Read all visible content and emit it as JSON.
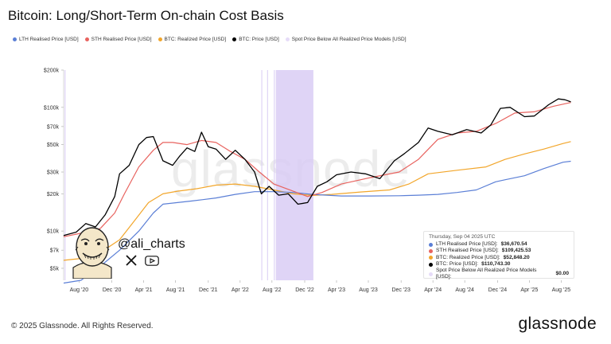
{
  "title": "Bitcoin: Long/Short-Term On-chain Cost Basis",
  "legend": [
    {
      "label": "LTH Realised Price [USD]",
      "color": "#5b7fd6"
    },
    {
      "label": "STH Realised Price [USD]",
      "color": "#e8635f"
    },
    {
      "label": "BTC: Realized Price [USD]",
      "color": "#f2a62b"
    },
    {
      "label": "BTC: Price [USD]",
      "color": "#000000"
    },
    {
      "label": "Spot Price Below All Realized Price Models [USD]",
      "color": "#d9ccf5"
    }
  ],
  "watermark": "glassnode",
  "tooltip": {
    "date": "Thursday, Sep 04 2025 UTC",
    "rows": [
      {
        "label": "LTH Realised Price [USD]:",
        "value": "$36,670.54",
        "color": "#5b7fd6"
      },
      {
        "label": "STH Realised Price [USD]:",
        "value": "$109,425.53",
        "color": "#e8635f"
      },
      {
        "label": "BTC: Realized Price [USD]:",
        "value": "$52,848.20",
        "color": "#f2a62b"
      },
      {
        "label": "BTC: Price [USD]:",
        "value": "$110,743.30",
        "color": "#000000"
      },
      {
        "label": "Spot Price Below All Realized Price Models [USD]:",
        "value": "$0.00",
        "color": "#d9ccf5"
      }
    ]
  },
  "author": {
    "handle": "@ali_charts"
  },
  "footer": {
    "copyright": "© 2025 Glassnode. All Rights Reserved.",
    "brand": "glassnode"
  },
  "chart_data": {
    "type": "line",
    "title": "Bitcoin: Long/Short-Term On-chain Cost Basis",
    "yscale": "log",
    "ylim": [
      4000,
      200000
    ],
    "xlim": [
      2020.42,
      2025.75
    ],
    "y_ticks": [
      5000,
      7000,
      10000,
      20000,
      30000,
      50000,
      70000,
      100000,
      200000
    ],
    "y_tick_labels": [
      "$5k",
      "$7k",
      "$10k",
      "$20k",
      "$30k",
      "$50k",
      "$70k",
      "$100k",
      "$200k"
    ],
    "x_ticks": [
      2020.58,
      2020.92,
      2021.25,
      2021.58,
      2021.92,
      2022.25,
      2022.58,
      2022.92,
      2023.25,
      2023.58,
      2023.92,
      2024.25,
      2024.58,
      2024.92,
      2025.25,
      2025.58
    ],
    "x_tick_labels": [
      "Aug '20",
      "Dec '20",
      "Apr '21",
      "Aug '21",
      "Dec '21",
      "Apr '22",
      "Aug '22",
      "Dec '22",
      "Apr '23",
      "Aug '23",
      "Dec '23",
      "Apr '24",
      "Aug '24",
      "Dec '24",
      "Apr '25",
      "Aug '25"
    ],
    "shaded_regions": [
      [
        2020.43,
        2020.44
      ],
      [
        2022.47,
        2022.48
      ],
      [
        2022.53,
        2022.54
      ],
      [
        2022.6,
        2022.61
      ],
      [
        2022.62,
        2023.01
      ]
    ],
    "series": [
      {
        "name": "LTH Realised Price [USD]",
        "color": "#5b7fd6",
        "x": [
          2020.42,
          2020.6,
          2020.8,
          2021.0,
          2021.2,
          2021.35,
          2021.45,
          2021.6,
          2021.75,
          2022.0,
          2022.2,
          2022.4,
          2022.6,
          2022.8,
          2023.0,
          2023.3,
          2023.6,
          2023.9,
          2024.1,
          2024.3,
          2024.5,
          2024.7,
          2024.9,
          2025.0,
          2025.2,
          2025.4,
          2025.6,
          2025.68
        ],
        "y": [
          3800,
          4000,
          5200,
          7000,
          10000,
          14000,
          16500,
          17000,
          17500,
          18500,
          19800,
          20800,
          20800,
          20500,
          19800,
          19200,
          19200,
          19300,
          19500,
          19800,
          20500,
          21500,
          25000,
          26000,
          28000,
          32000,
          36000,
          36670
        ]
      },
      {
        "name": "STH Realised Price [USD]",
        "color": "#e8635f",
        "x": [
          2020.42,
          2020.6,
          2020.8,
          2020.95,
          2021.05,
          2021.2,
          2021.35,
          2021.45,
          2021.55,
          2021.7,
          2021.85,
          2022.0,
          2022.15,
          2022.3,
          2022.45,
          2022.6,
          2022.8,
          2022.95,
          2023.1,
          2023.3,
          2023.6,
          2023.9,
          2024.1,
          2024.3,
          2024.5,
          2024.7,
          2024.9,
          2025.1,
          2025.3,
          2025.5,
          2025.68
        ],
        "y": [
          9000,
          9600,
          10500,
          14000,
          20000,
          33000,
          45000,
          52000,
          52000,
          50000,
          54000,
          52000,
          44000,
          38000,
          30000,
          24000,
          21000,
          19000,
          20500,
          24000,
          27000,
          30000,
          38000,
          55000,
          62000,
          64000,
          74000,
          90000,
          92000,
          102000,
          109425
        ]
      },
      {
        "name": "BTC: Realized Price [USD]",
        "color": "#f2a62b",
        "x": [
          2020.42,
          2020.6,
          2020.8,
          2021.0,
          2021.15,
          2021.3,
          2021.45,
          2021.6,
          2021.8,
          2022.0,
          2022.2,
          2022.4,
          2022.6,
          2022.8,
          2023.0,
          2023.2,
          2023.5,
          2023.8,
          2024.0,
          2024.2,
          2024.5,
          2024.8,
          2025.0,
          2025.2,
          2025.4,
          2025.6,
          2025.68
        ],
        "y": [
          5800,
          6000,
          6700,
          8500,
          12000,
          17000,
          20000,
          21000,
          22000,
          23500,
          24000,
          23000,
          21500,
          20000,
          19400,
          19800,
          20700,
          21500,
          24000,
          29000,
          31000,
          33000,
          38000,
          42000,
          46000,
          51000,
          52848
        ]
      },
      {
        "name": "BTC: Price [USD]",
        "color": "#000000",
        "x": [
          2020.42,
          2020.55,
          2020.65,
          2020.75,
          2020.85,
          2020.95,
          2021.0,
          2021.1,
          2021.2,
          2021.28,
          2021.35,
          2021.45,
          2021.55,
          2021.62,
          2021.7,
          2021.78,
          2021.85,
          2021.92,
          2022.0,
          2022.1,
          2022.2,
          2022.3,
          2022.4,
          2022.47,
          2022.55,
          2022.65,
          2022.75,
          2022.85,
          2022.95,
          2023.05,
          2023.15,
          2023.25,
          2023.4,
          2023.55,
          2023.7,
          2023.85,
          2023.95,
          2024.1,
          2024.2,
          2024.3,
          2024.45,
          2024.6,
          2024.75,
          2024.85,
          2024.95,
          2025.05,
          2025.2,
          2025.3,
          2025.45,
          2025.55,
          2025.62,
          2025.68
        ],
        "y": [
          9200,
          9800,
          11500,
          10800,
          13500,
          19000,
          29000,
          34000,
          50000,
          57000,
          58000,
          37000,
          34000,
          40000,
          47000,
          44000,
          63000,
          48000,
          46000,
          38000,
          45000,
          38000,
          30000,
          20000,
          23000,
          19500,
          20000,
          16500,
          17000,
          23000,
          25000,
          28500,
          30000,
          29000,
          26500,
          37000,
          42000,
          52000,
          68000,
          64000,
          60000,
          66000,
          62000,
          72000,
          98000,
          100000,
          84000,
          85000,
          105000,
          117000,
          115000,
          110743
        ]
      }
    ]
  }
}
